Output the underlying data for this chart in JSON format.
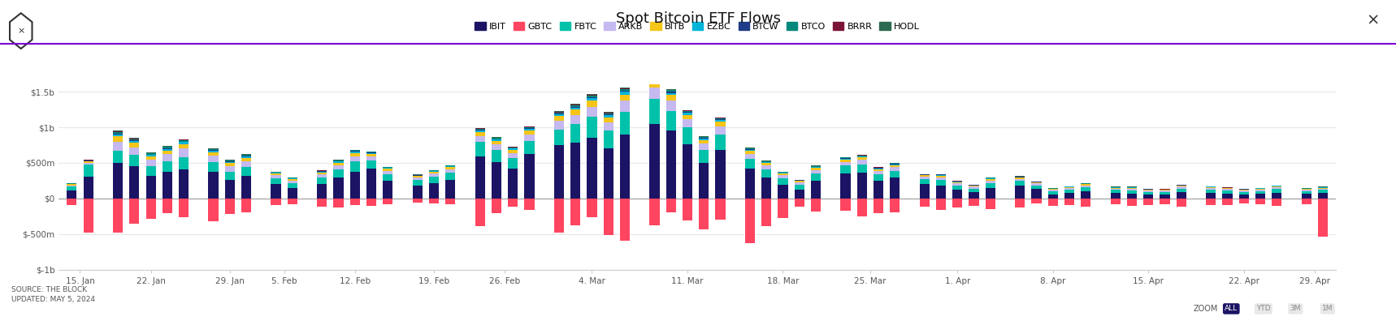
{
  "title": "Spot Bitcoin ETF Flows",
  "source_text": "SOURCE: THE BLOCK\nUPDATED: MAY 5, 2024",
  "legend_items": [
    "IBIT",
    "GBTC",
    "FBTC",
    "ARKB",
    "BITB",
    "EZBC",
    "BTCW",
    "BTCO",
    "BRRR",
    "HODL"
  ],
  "legend_colors": [
    "#1b1464",
    "#ff4560",
    "#00c2aa",
    "#c5b9f0",
    "#f5c518",
    "#00b4d8",
    "#1f3c88",
    "#00897b",
    "#7b1538",
    "#2d6a4f"
  ],
  "ylim": [
    -1000,
    1600
  ],
  "yticks": [
    -1000,
    -500,
    0,
    500,
    1000,
    1500
  ],
  "ytick_labels": [
    "$-1b",
    "$-500m",
    "$0",
    "$500m",
    "$1b",
    "$1.5b"
  ],
  "background_color": "#ffffff",
  "grid_color": "#e8e8e8",
  "header_line_color": "#7b00d4",
  "week_groups": [
    {
      "label": "15. Jan",
      "days": [
        {
          "ibit": 111,
          "gbtc": -95,
          "fbtc": 55,
          "arkb": 20,
          "bitb": 15,
          "ezbc": 5,
          "btcw": 3,
          "btco": 5,
          "brrr": 2,
          "hodl": 2
        },
        {
          "ibit": 302,
          "gbtc": -484,
          "fbtc": 178,
          "arkb": 22,
          "bitb": 18,
          "ezbc": 8,
          "btcw": 4,
          "btco": 7,
          "brrr": 3,
          "hodl": 3
        }
      ]
    },
    {
      "label": "22. Jan",
      "days": [
        {
          "ibit": 500,
          "gbtc": -480,
          "fbtc": 170,
          "arkb": 130,
          "bitb": 70,
          "ezbc": 30,
          "btcw": 12,
          "btco": 22,
          "brrr": 8,
          "hodl": 8
        },
        {
          "ibit": 450,
          "gbtc": -350,
          "fbtc": 160,
          "arkb": 110,
          "bitb": 60,
          "ezbc": 25,
          "btcw": 10,
          "btco": 18,
          "brrr": 7,
          "hodl": 7
        },
        {
          "ibit": 320,
          "gbtc": -280,
          "fbtc": 130,
          "arkb": 90,
          "bitb": 50,
          "ezbc": 20,
          "btcw": 8,
          "btco": 14,
          "brrr": 5,
          "hodl": 5
        },
        {
          "ibit": 380,
          "gbtc": -210,
          "fbtc": 140,
          "arkb": 100,
          "bitb": 55,
          "ezbc": 22,
          "btcw": 9,
          "btco": 16,
          "brrr": 6,
          "hodl": 6
        },
        {
          "ibit": 410,
          "gbtc": -260,
          "fbtc": 170,
          "arkb": 120,
          "bitb": 65,
          "ezbc": 26,
          "btcw": 10,
          "btco": 19,
          "brrr": 7,
          "hodl": 7
        }
      ]
    },
    {
      "label": "29. Jan",
      "days": [
        {
          "ibit": 370,
          "gbtc": -320,
          "fbtc": 140,
          "arkb": 90,
          "bitb": 50,
          "ezbc": 20,
          "btcw": 8,
          "btco": 15,
          "brrr": 5,
          "hodl": 5
        },
        {
          "ibit": 260,
          "gbtc": -220,
          "fbtc": 110,
          "arkb": 80,
          "bitb": 45,
          "ezbc": 18,
          "btcw": 7,
          "btco": 13,
          "brrr": 5,
          "hodl": 4
        },
        {
          "ibit": 320,
          "gbtc": -190,
          "fbtc": 120,
          "arkb": 85,
          "bitb": 48,
          "ezbc": 19,
          "btcw": 8,
          "btco": 14,
          "brrr": 5,
          "hodl": 5
        }
      ]
    },
    {
      "label": "5. Feb",
      "days": [
        {
          "ibit": 200,
          "gbtc": -95,
          "fbtc": 85,
          "arkb": 40,
          "bitb": 25,
          "ezbc": 10,
          "btcw": 4,
          "btco": 7,
          "brrr": 3,
          "hodl": 2
        },
        {
          "ibit": 150,
          "gbtc": -80,
          "fbtc": 70,
          "arkb": 35,
          "bitb": 20,
          "ezbc": 8,
          "btcw": 3,
          "btco": 6,
          "brrr": 2,
          "hodl": 2
        }
      ]
    },
    {
      "label": "12. Feb",
      "days": [
        {
          "ibit": 204,
          "gbtc": -110,
          "fbtc": 90,
          "arkb": 45,
          "bitb": 28,
          "ezbc": 11,
          "btcw": 4,
          "btco": 7,
          "brrr": 3,
          "hodl": 3
        },
        {
          "ibit": 290,
          "gbtc": -130,
          "fbtc": 120,
          "arkb": 60,
          "bitb": 35,
          "ezbc": 14,
          "btcw": 6,
          "btco": 10,
          "brrr": 4,
          "hodl": 3
        },
        {
          "ibit": 380,
          "gbtc": -90,
          "fbtc": 140,
          "arkb": 75,
          "bitb": 45,
          "ezbc": 18,
          "btcw": 7,
          "btco": 13,
          "brrr": 5,
          "hodl": 4
        },
        {
          "ibit": 420,
          "gbtc": -100,
          "fbtc": 110,
          "arkb": 60,
          "bitb": 35,
          "ezbc": 14,
          "btcw": 6,
          "btco": 10,
          "brrr": 4,
          "hodl": 4
        },
        {
          "ibit": 250,
          "gbtc": -80,
          "fbtc": 95,
          "arkb": 45,
          "bitb": 28,
          "ezbc": 11,
          "btcw": 4,
          "btco": 7,
          "brrr": 3,
          "hodl": 3
        }
      ]
    },
    {
      "label": "19. Feb",
      "days": [
        {
          "ibit": 180,
          "gbtc": -60,
          "fbtc": 80,
          "arkb": 35,
          "bitb": 20,
          "ezbc": 8,
          "btcw": 3,
          "btco": 6,
          "brrr": 2,
          "hodl": 2
        },
        {
          "ibit": 220,
          "gbtc": -70,
          "fbtc": 90,
          "arkb": 40,
          "bitb": 24,
          "ezbc": 10,
          "btcw": 4,
          "btco": 7,
          "brrr": 3,
          "hodl": 2
        },
        {
          "ibit": 260,
          "gbtc": -80,
          "fbtc": 100,
          "arkb": 48,
          "bitb": 30,
          "ezbc": 12,
          "btcw": 5,
          "btco": 8,
          "brrr": 3,
          "hodl": 3
        }
      ]
    },
    {
      "label": "26. Feb",
      "days": [
        {
          "ibit": 590,
          "gbtc": -390,
          "fbtc": 200,
          "arkb": 90,
          "bitb": 55,
          "ezbc": 22,
          "btcw": 9,
          "btco": 16,
          "brrr": 6,
          "hodl": 6
        },
        {
          "ibit": 510,
          "gbtc": -210,
          "fbtc": 170,
          "arkb": 80,
          "bitb": 48,
          "ezbc": 19,
          "btcw": 8,
          "btco": 14,
          "brrr": 5,
          "hodl": 5
        },
        {
          "ibit": 420,
          "gbtc": -120,
          "fbtc": 150,
          "arkb": 70,
          "bitb": 42,
          "ezbc": 17,
          "btcw": 7,
          "btco": 12,
          "brrr": 4,
          "hodl": 4
        },
        {
          "ibit": 620,
          "gbtc": -160,
          "fbtc": 190,
          "arkb": 90,
          "bitb": 55,
          "ezbc": 22,
          "btcw": 9,
          "btco": 16,
          "brrr": 6,
          "hodl": 5
        }
      ]
    },
    {
      "label": "4. Mar",
      "days": [
        {
          "ibit": 750,
          "gbtc": -480,
          "fbtc": 220,
          "arkb": 120,
          "bitb": 65,
          "ezbc": 26,
          "btcw": 10,
          "btco": 19,
          "brrr": 7,
          "hodl": 7
        },
        {
          "ibit": 780,
          "gbtc": -380,
          "fbtc": 260,
          "arkb": 130,
          "bitb": 75,
          "ezbc": 30,
          "btcw": 12,
          "btco": 22,
          "brrr": 8,
          "hodl": 8
        },
        {
          "ibit": 850,
          "gbtc": -260,
          "fbtc": 300,
          "arkb": 140,
          "bitb": 85,
          "ezbc": 34,
          "btcw": 14,
          "btco": 24,
          "brrr": 9,
          "hodl": 9
        },
        {
          "ibit": 700,
          "gbtc": -510,
          "fbtc": 250,
          "arkb": 120,
          "bitb": 70,
          "ezbc": 28,
          "btcw": 11,
          "btco": 20,
          "brrr": 7,
          "hodl": 7
        },
        {
          "ibit": 900,
          "gbtc": -590,
          "fbtc": 320,
          "arkb": 150,
          "bitb": 90,
          "ezbc": 36,
          "btcw": 14,
          "btco": 26,
          "brrr": 9,
          "hodl": 9
        }
      ]
    },
    {
      "label": "11. Mar",
      "days": [
        {
          "ibit": 1050,
          "gbtc": -380,
          "fbtc": 350,
          "arkb": 160,
          "bitb": 95,
          "ezbc": 38,
          "btcw": 15,
          "btco": 28,
          "brrr": 10,
          "hodl": 10
        },
        {
          "ibit": 950,
          "gbtc": -190,
          "fbtc": 280,
          "arkb": 140,
          "bitb": 80,
          "ezbc": 32,
          "btcw": 13,
          "btco": 23,
          "brrr": 8,
          "hodl": 8
        },
        {
          "ibit": 760,
          "gbtc": -310,
          "fbtc": 240,
          "arkb": 110,
          "bitb": 65,
          "ezbc": 26,
          "btcw": 10,
          "btco": 18,
          "brrr": 6,
          "hodl": 6
        },
        {
          "ibit": 500,
          "gbtc": -430,
          "fbtc": 180,
          "arkb": 90,
          "bitb": 50,
          "ezbc": 20,
          "btcw": 8,
          "btco": 14,
          "brrr": 5,
          "hodl": 5
        },
        {
          "ibit": 680,
          "gbtc": -300,
          "fbtc": 220,
          "arkb": 110,
          "bitb": 65,
          "ezbc": 26,
          "btcw": 10,
          "btco": 18,
          "brrr": 6,
          "hodl": 6
        }
      ]
    },
    {
      "label": "18. Mar",
      "days": [
        {
          "ibit": 420,
          "gbtc": -630,
          "fbtc": 140,
          "arkb": 70,
          "bitb": 40,
          "ezbc": 16,
          "btcw": 6,
          "btco": 11,
          "brrr": 4,
          "hodl": 4
        },
        {
          "ibit": 300,
          "gbtc": -390,
          "fbtc": 110,
          "arkb": 55,
          "bitb": 32,
          "ezbc": 13,
          "btcw": 5,
          "btco": 9,
          "brrr": 3,
          "hodl": 3
        },
        {
          "ibit": 190,
          "gbtc": -270,
          "fbtc": 90,
          "arkb": 45,
          "bitb": 25,
          "ezbc": 10,
          "btcw": 4,
          "btco": 7,
          "brrr": 3,
          "hodl": 2
        },
        {
          "ibit": 120,
          "gbtc": -110,
          "fbtc": 70,
          "arkb": 35,
          "bitb": 20,
          "ezbc": 8,
          "btcw": 3,
          "btco": 6,
          "brrr": 2,
          "hodl": 2
        },
        {
          "ibit": 250,
          "gbtc": -180,
          "fbtc": 100,
          "arkb": 50,
          "bitb": 30,
          "ezbc": 12,
          "btcw": 5,
          "btco": 8,
          "brrr": 3,
          "hodl": 3
        }
      ]
    },
    {
      "label": "25. Mar",
      "days": [
        {
          "ibit": 350,
          "gbtc": -170,
          "fbtc": 110,
          "arkb": 55,
          "bitb": 32,
          "ezbc": 13,
          "btcw": 5,
          "btco": 9,
          "brrr": 3,
          "hodl": 3
        },
        {
          "ibit": 360,
          "gbtc": -250,
          "fbtc": 120,
          "arkb": 60,
          "bitb": 35,
          "ezbc": 14,
          "btcw": 6,
          "btco": 10,
          "brrr": 3,
          "hodl": 3
        },
        {
          "ibit": 250,
          "gbtc": -210,
          "fbtc": 90,
          "arkb": 45,
          "bitb": 28,
          "ezbc": 11,
          "btcw": 4,
          "btco": 8,
          "brrr": 3,
          "hodl": 2
        },
        {
          "ibit": 290,
          "gbtc": -190,
          "fbtc": 100,
          "arkb": 50,
          "bitb": 30,
          "ezbc": 12,
          "btcw": 5,
          "btco": 8,
          "brrr": 3,
          "hodl": 3
        }
      ]
    },
    {
      "label": "1. Apr",
      "days": [
        {
          "ibit": 200,
          "gbtc": -120,
          "fbtc": 70,
          "arkb": 35,
          "bitb": 20,
          "ezbc": 8,
          "btcw": 3,
          "btco": 6,
          "brrr": 2,
          "hodl": 2
        },
        {
          "ibit": 180,
          "gbtc": -160,
          "fbtc": 80,
          "arkb": 40,
          "bitb": 22,
          "ezbc": 9,
          "btcw": 4,
          "btco": 6,
          "brrr": 2,
          "hodl": 2
        },
        {
          "ibit": 120,
          "gbtc": -130,
          "fbtc": 60,
          "arkb": 30,
          "bitb": 18,
          "ezbc": 7,
          "btcw": 3,
          "btco": 5,
          "brrr": 2,
          "hodl": 2
        },
        {
          "ibit": 90,
          "gbtc": -100,
          "fbtc": 50,
          "arkb": 25,
          "bitb": 15,
          "ezbc": 6,
          "btcw": 2,
          "btco": 4,
          "brrr": 2,
          "hodl": 2
        },
        {
          "ibit": 150,
          "gbtc": -150,
          "fbtc": 70,
          "arkb": 35,
          "bitb": 20,
          "ezbc": 8,
          "btcw": 3,
          "btco": 5,
          "brrr": 2,
          "hodl": 2
        }
      ]
    },
    {
      "label": "8. Apr",
      "days": [
        {
          "ibit": 180,
          "gbtc": -130,
          "fbtc": 65,
          "arkb": 30,
          "bitb": 18,
          "ezbc": 7,
          "btcw": 3,
          "btco": 5,
          "brrr": 2,
          "hodl": 2
        },
        {
          "ibit": 130,
          "gbtc": -70,
          "fbtc": 55,
          "arkb": 25,
          "bitb": 15,
          "ezbc": 6,
          "btcw": 2,
          "btco": 4,
          "brrr": 2,
          "hodl": 2
        },
        {
          "ibit": 60,
          "gbtc": -100,
          "fbtc": 40,
          "arkb": 20,
          "bitb": 12,
          "ezbc": 5,
          "btcw": 2,
          "btco": 3,
          "brrr": 2,
          "hodl": 2
        },
        {
          "ibit": 80,
          "gbtc": -90,
          "fbtc": 45,
          "arkb": 22,
          "bitb": 13,
          "ezbc": 5,
          "btcw": 2,
          "btco": 4,
          "brrr": 2,
          "hodl": 2
        },
        {
          "ibit": 100,
          "gbtc": -110,
          "fbtc": 55,
          "arkb": 28,
          "bitb": 16,
          "ezbc": 6,
          "btcw": 2,
          "btco": 4,
          "brrr": 2,
          "hodl": 2
        }
      ]
    },
    {
      "label": "15. Apr",
      "days": [
        {
          "ibit": 80,
          "gbtc": -80,
          "fbtc": 40,
          "arkb": 20,
          "bitb": 12,
          "ezbc": 5,
          "btcw": 2,
          "btco": 3,
          "brrr": 2,
          "hodl": 2
        },
        {
          "ibit": 70,
          "gbtc": -100,
          "fbtc": 45,
          "arkb": 22,
          "bitb": 13,
          "ezbc": 5,
          "btcw": 2,
          "btco": 4,
          "brrr": 2,
          "hodl": 2
        },
        {
          "ibit": 60,
          "gbtc": -90,
          "fbtc": 35,
          "arkb": 18,
          "bitb": 11,
          "ezbc": 4,
          "btcw": 2,
          "btco": 3,
          "brrr": 2,
          "hodl": 2
        },
        {
          "ibit": 55,
          "gbtc": -80,
          "fbtc": 35,
          "arkb": 18,
          "bitb": 11,
          "ezbc": 4,
          "btcw": 2,
          "btco": 3,
          "brrr": 2,
          "hodl": 2
        },
        {
          "ibit": 90,
          "gbtc": -110,
          "fbtc": 50,
          "arkb": 25,
          "bitb": 15,
          "ezbc": 6,
          "btcw": 2,
          "btco": 3,
          "brrr": 2,
          "hodl": 2
        }
      ]
    },
    {
      "label": "22. Apr",
      "days": [
        {
          "ibit": 80,
          "gbtc": -90,
          "fbtc": 45,
          "arkb": 22,
          "bitb": 13,
          "ezbc": 5,
          "btcw": 2,
          "btco": 3,
          "brrr": 2,
          "hodl": 2
        },
        {
          "ibit": 70,
          "gbtc": -95,
          "fbtc": 40,
          "arkb": 20,
          "bitb": 12,
          "ezbc": 5,
          "btcw": 2,
          "btco": 3,
          "brrr": 2,
          "hodl": 2
        },
        {
          "ibit": 60,
          "gbtc": -70,
          "fbtc": 35,
          "arkb": 18,
          "bitb": 11,
          "ezbc": 4,
          "btcw": 2,
          "btco": 3,
          "brrr": 2,
          "hodl": 2
        },
        {
          "ibit": 65,
          "gbtc": -80,
          "fbtc": 40,
          "arkb": 20,
          "bitb": 12,
          "ezbc": 5,
          "btcw": 2,
          "btco": 3,
          "brrr": 2,
          "hodl": 2
        },
        {
          "ibit": 80,
          "gbtc": -100,
          "fbtc": 50,
          "arkb": 25,
          "bitb": 15,
          "ezbc": 6,
          "btcw": 2,
          "btco": 3,
          "brrr": 2,
          "hodl": 2
        }
      ]
    },
    {
      "label": "29. Apr",
      "days": [
        {
          "ibit": 70,
          "gbtc": -80,
          "fbtc": 35,
          "arkb": 18,
          "bitb": 11,
          "ezbc": 4,
          "btcw": 2,
          "btco": 3,
          "brrr": 2,
          "hodl": 2
        },
        {
          "ibit": 80,
          "gbtc": -530,
          "fbtc": 40,
          "arkb": 20,
          "bitb": 12,
          "ezbc": 5,
          "btcw": 2,
          "btco": 3,
          "brrr": 2,
          "hodl": 2
        }
      ]
    }
  ],
  "etf_keys": [
    "ibit",
    "gbtc",
    "fbtc",
    "arkb",
    "bitb",
    "ezbc",
    "btcw",
    "btco",
    "brrr",
    "hodl"
  ],
  "zoom_buttons": [
    "ALL",
    "YTD",
    "3M",
    "1M"
  ],
  "zoom_active": "ALL"
}
